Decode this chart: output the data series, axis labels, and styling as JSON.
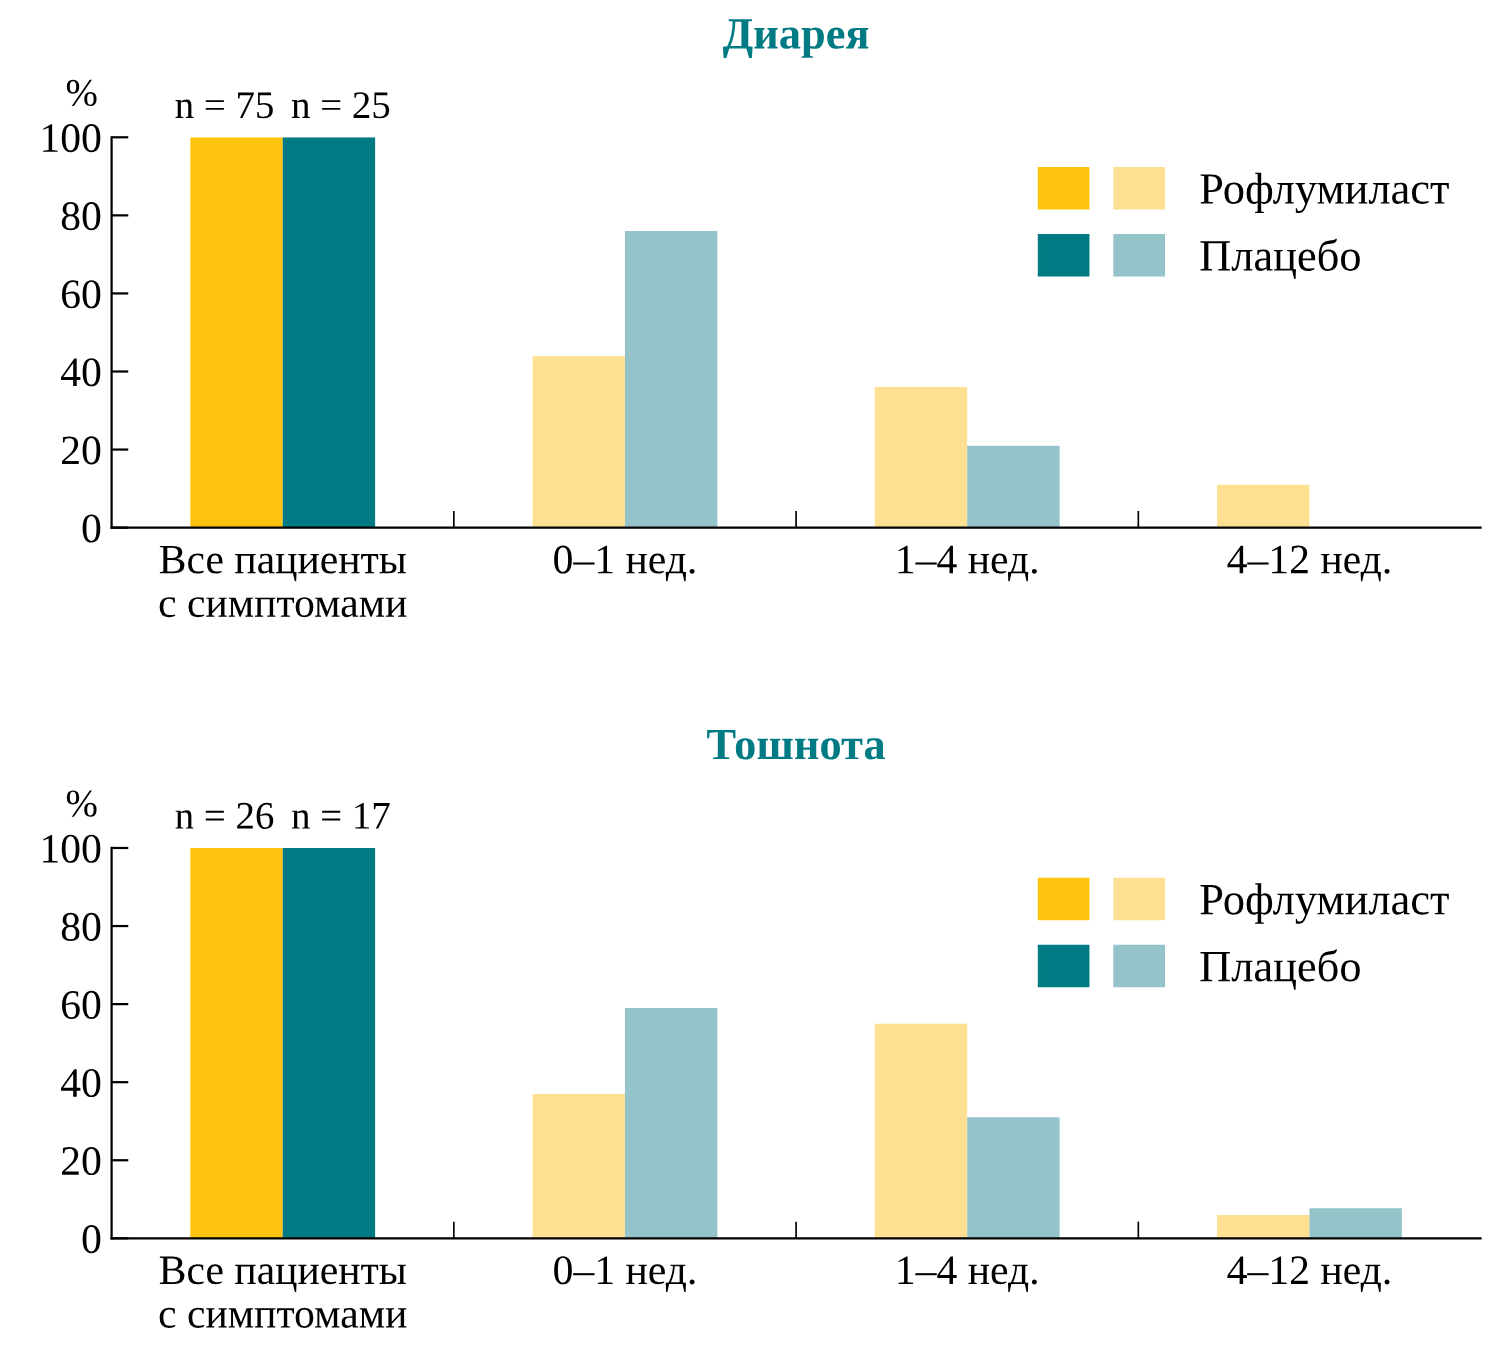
{
  "chart_data": [
    {
      "type": "bar",
      "title": "Диарея",
      "ylabel": "%",
      "categories": [
        "Все пациенты\nс симптомами",
        "0–1 нед.",
        "1–4 нед.",
        "4–12 нед."
      ],
      "series": [
        {
          "name": "Рофлумиласт",
          "color": "#fdc30f",
          "colors": [
            "#fdc30f",
            "#fde092",
            "#fde092",
            "#fde092"
          ],
          "values": [
            100,
            44,
            36,
            11
          ]
        },
        {
          "name": "Плацебо",
          "color": "#007b83",
          "colors": [
            "#007b83",
            "#94c3ca",
            "#94c3ca",
            "#94c3ca"
          ],
          "values": [
            100,
            76,
            21,
            0
          ]
        }
      ],
      "annotations": [
        {
          "text": "n = 75",
          "x": "Все пациенты\nс симптомами",
          "y": 100
        },
        {
          "text": "n = 25",
          "x": "Все пациенты\nс симптомами",
          "y": 100
        }
      ],
      "ylim": [
        0,
        100
      ],
      "yticks": [
        0,
        20,
        40,
        60,
        80,
        100
      ],
      "grid": false,
      "legend": "top right"
    },
    {
      "type": "bar",
      "title": "Тошнота",
      "ylabel": "%",
      "categories": [
        "Все пациенты\nс симптомами",
        "0–1 нед.",
        "1–4 нед.",
        "4–12 нед."
      ],
      "series": [
        {
          "name": "Рофлумиласт",
          "color": "#fdc30f",
          "colors": [
            "#fdc30f",
            "#fde092",
            "#fde092",
            "#fde092"
          ],
          "values": [
            100,
            37,
            55,
            6
          ]
        },
        {
          "name": "Плацебо",
          "color": "#007b83",
          "colors": [
            "#007b83",
            "#94c3ca",
            "#94c3ca",
            "#94c3ca"
          ],
          "values": [
            100,
            59,
            31,
            7.7
          ]
        }
      ],
      "annotations": [
        {
          "text": "n = 26",
          "x": "Все пациенты\nс симптомами",
          "y": 100
        },
        {
          "text": "n = 17",
          "x": "Все пациенты\nс симптомами",
          "y": 100
        }
      ],
      "ylim": [
        0,
        100
      ],
      "yticks": [
        0,
        20,
        40,
        60,
        80,
        100
      ],
      "grid": false,
      "legend": "top right"
    }
  ]
}
